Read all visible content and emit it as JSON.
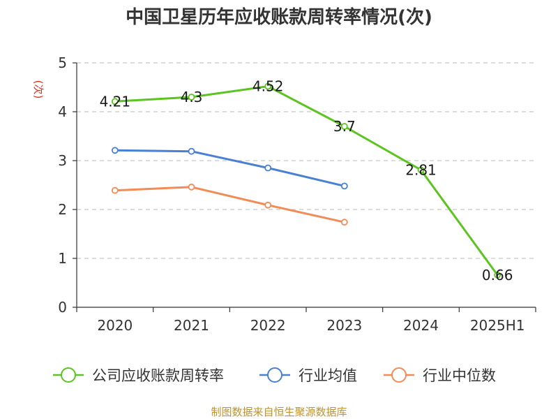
{
  "chart_data": {
    "type": "line",
    "title": "中国卫星历年应收账款周转率情况(次)",
    "ylabel": "(次)",
    "xlabel": "",
    "categories": [
      "2020",
      "2021",
      "2022",
      "2023",
      "2024",
      "2025H1"
    ],
    "ylim": [
      0,
      5
    ],
    "yticks": [
      "0",
      "1",
      "2",
      "3",
      "4",
      "5"
    ],
    "grid": true,
    "legend_position": "bottom",
    "series": [
      {
        "name": "公司应收账款周转率",
        "color": "#5cc41f",
        "values": [
          4.21,
          4.3,
          4.52,
          3.7,
          2.81,
          0.66
        ],
        "labels": [
          "4.21",
          "4.3",
          "4.52",
          "3.7",
          "2.81",
          "0.66"
        ]
      },
      {
        "name": "行业均值",
        "color": "#4a7fd6",
        "values": [
          3.21,
          3.19,
          2.85,
          2.48,
          null,
          null
        ]
      },
      {
        "name": "行业中位数",
        "color": "#f38b56",
        "values": [
          2.39,
          2.46,
          2.09,
          1.74,
          null,
          null
        ]
      }
    ],
    "source": "制图数据来自恒生聚源数据库"
  }
}
